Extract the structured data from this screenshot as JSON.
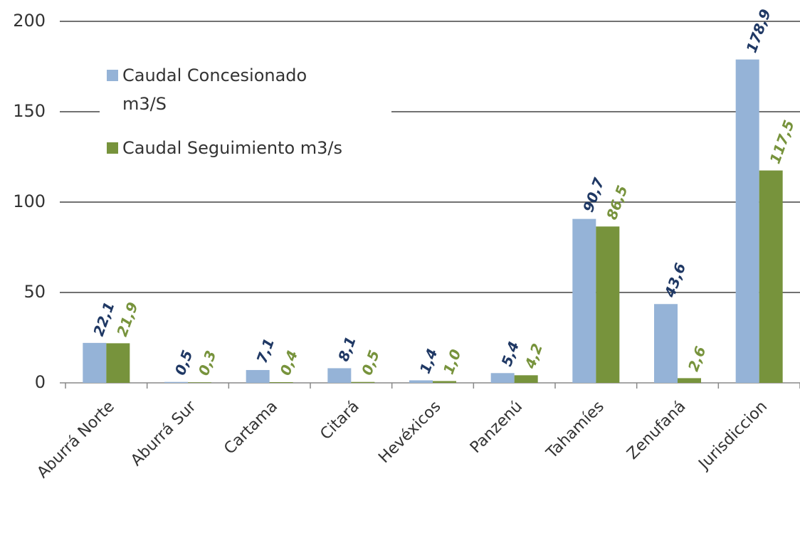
{
  "chart_data": {
    "type": "bar",
    "categories": [
      "Aburrá Norte",
      "Aburrá Sur",
      "Cartama",
      "Citará",
      "Hevéxicos",
      "Panzenú",
      "Tahamíes",
      "Zenufaná",
      "Jurisdiccion"
    ],
    "series": [
      {
        "name": "Caudal Concesionado m3/S",
        "color": "#95b3d7",
        "label_color": "#1f3864",
        "values": [
          22.1,
          0.5,
          7.1,
          8.1,
          1.4,
          5.4,
          90.7,
          43.6,
          178.9
        ],
        "value_labels": [
          "22,1",
          "0,5",
          "7,1",
          "8,1",
          "1,4",
          "5,4",
          "90,7",
          "43,6",
          "178,9"
        ]
      },
      {
        "name": "Caudal Seguimiento m3/s",
        "color": "#77933c",
        "label_color": "#77933c",
        "values": [
          21.9,
          0.3,
          0.4,
          0.5,
          1.0,
          4.2,
          86.5,
          2.6,
          117.5
        ],
        "value_labels": [
          "21,9",
          "0,3",
          "0,4",
          "0,5",
          "1,0",
          "4,2",
          "86,5",
          "2,6",
          "117,5"
        ]
      }
    ],
    "ylim": [
      0,
      200
    ],
    "yticks": [
      0,
      50,
      100,
      150,
      200
    ],
    "grid": true,
    "legend": "top-left"
  }
}
